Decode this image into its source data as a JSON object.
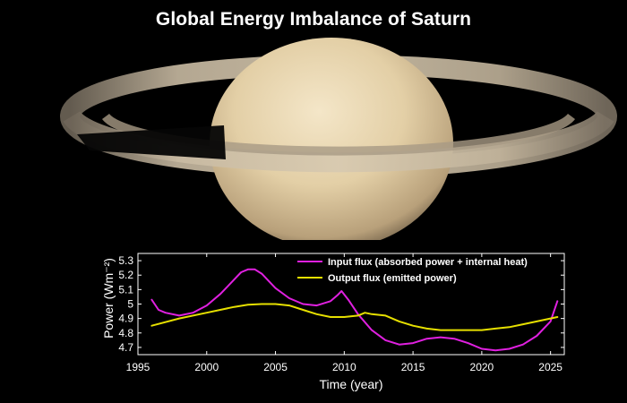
{
  "title": "Global Energy Imbalance of Saturn",
  "colors": {
    "background": "#000000",
    "input_flux": "#e020e0",
    "output_flux": "#e6e000",
    "axes": "#ffffff"
  },
  "chart_data": {
    "type": "line",
    "xlabel": "Time (year)",
    "ylabel": "Power (Wm⁻²)",
    "xlim": [
      1995,
      2026
    ],
    "ylim": [
      4.65,
      5.35
    ],
    "xticks": [
      1995,
      2000,
      2005,
      2010,
      2015,
      2020,
      2025
    ],
    "yticks": [
      4.7,
      4.8,
      4.9,
      5,
      5.1,
      5.2,
      5.3
    ],
    "ytick_labels": [
      "4.7",
      "4.8",
      "4.9",
      "5",
      "5.1",
      "5.2",
      "5.3"
    ],
    "legend_position": "top-right",
    "grid": false,
    "series": [
      {
        "name": "Input flux (absorbed power + internal heat)",
        "color": "#e020e0",
        "x": [
          1996,
          1996.5,
          1997,
          1998,
          1999,
          2000,
          2001,
          2002,
          2002.5,
          2003,
          2003.5,
          2004,
          2005,
          2006,
          2007,
          2008,
          2009,
          2009.5,
          2009.8,
          2010.3,
          2011,
          2012,
          2013,
          2014,
          2015,
          2016,
          2017,
          2018,
          2019,
          2020,
          2021,
          2022,
          2023,
          2024,
          2025,
          2025.5
        ],
        "y": [
          5.03,
          4.96,
          4.94,
          4.92,
          4.94,
          4.99,
          5.07,
          5.17,
          5.22,
          5.24,
          5.24,
          5.21,
          5.11,
          5.04,
          5.0,
          4.99,
          5.02,
          5.06,
          5.09,
          5.03,
          4.93,
          4.82,
          4.75,
          4.72,
          4.73,
          4.76,
          4.77,
          4.76,
          4.73,
          4.69,
          4.68,
          4.69,
          4.72,
          4.78,
          4.88,
          5.02
        ]
      },
      {
        "name": "Output flux (emitted power)",
        "color": "#e6e000",
        "x": [
          1996,
          1998,
          2000,
          2002,
          2003,
          2004,
          2005,
          2006,
          2007,
          2008,
          2009,
          2010,
          2011,
          2011.5,
          2012,
          2013,
          2014,
          2015,
          2016,
          2017,
          2018,
          2019,
          2020,
          2021,
          2022,
          2023,
          2024,
          2025,
          2025.5
        ],
        "y": [
          4.85,
          4.9,
          4.94,
          4.98,
          4.995,
          5.0,
          5.0,
          4.99,
          4.96,
          4.93,
          4.91,
          4.91,
          4.92,
          4.94,
          4.93,
          4.92,
          4.88,
          4.85,
          4.83,
          4.82,
          4.82,
          4.82,
          4.82,
          4.83,
          4.84,
          4.86,
          4.88,
          4.9,
          4.91
        ]
      }
    ]
  }
}
